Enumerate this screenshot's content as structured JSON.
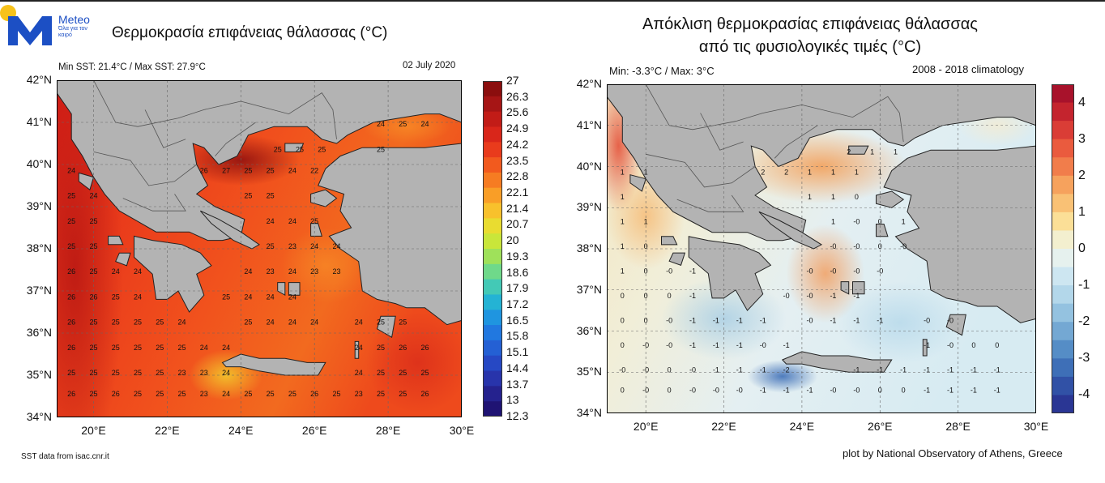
{
  "header": {
    "brand": "Meteo",
    "tagline": "Όλα για τον καιρό",
    "title_left": "Θερμοκρασία επιφάνειας θάλασσας (°C)",
    "title_right_line1": "Απόκλιση θερμοκρασίας επιφάνειας θάλασσας",
    "title_right_line2": "από τις φυσιολογικές τιμές (°C)"
  },
  "left_map": {
    "stats": "Min SST: 21.4°C / Max SST: 27.9°C",
    "date": "02 July 2020",
    "footer": "SST data from isac.cnr.it",
    "y_ticks": [
      "42°N",
      "41°N",
      "40°N",
      "39°N",
      "38°N",
      "37°N",
      "36°N",
      "35°N",
      "34°N"
    ],
    "x_ticks": [
      "20°E",
      "22°E",
      "24°E",
      "26°E",
      "28°E",
      "30°E"
    ],
    "colorbar_labels": [
      "27",
      "26.3",
      "25.6",
      "24.9",
      "24.2",
      "23.5",
      "22.8",
      "22.1",
      "21.4",
      "20.7",
      "20",
      "19.3",
      "18.6",
      "17.9",
      "17.2",
      "16.5",
      "15.8",
      "15.1",
      "14.4",
      "13.7",
      "13",
      "12.3"
    ],
    "colorbar_colors": [
      "#8b0e0e",
      "#a61515",
      "#c21c17",
      "#d9261a",
      "#e93b1c",
      "#f25a1e",
      "#f67c22",
      "#f99e27",
      "#f8c12c",
      "#e9dc30",
      "#c9e63a",
      "#9fe15a",
      "#6fd98a",
      "#43c9b6",
      "#24b3d4",
      "#1f95e0",
      "#2178e0",
      "#2460d4",
      "#2648c4",
      "#2834ab",
      "#25228e",
      "#1f1373"
    ],
    "value_rows": [
      {
        "lat": 39.8,
        "values": [
          {
            "lon": 19.4,
            "v": "24"
          },
          {
            "lon": 23.0,
            "v": "26"
          },
          {
            "lon": 23.6,
            "v": "27"
          },
          {
            "lon": 24.2,
            "v": "25"
          },
          {
            "lon": 24.8,
            "v": "25"
          },
          {
            "lon": 25.4,
            "v": "24"
          },
          {
            "lon": 26.0,
            "v": "22"
          }
        ]
      },
      {
        "lat": 39.2,
        "values": [
          {
            "lon": 19.4,
            "v": "25"
          },
          {
            "lon": 20.0,
            "v": "24"
          },
          {
            "lon": 24.2,
            "v": "25"
          },
          {
            "lon": 24.8,
            "v": "25"
          }
        ]
      },
      {
        "lat": 38.6,
        "values": [
          {
            "lon": 19.4,
            "v": "25"
          },
          {
            "lon": 20.0,
            "v": "25"
          },
          {
            "lon": 24.8,
            "v": "24"
          },
          {
            "lon": 25.4,
            "v": "24"
          },
          {
            "lon": 26.0,
            "v": "25"
          }
        ]
      },
      {
        "lat": 38.0,
        "values": [
          {
            "lon": 19.4,
            "v": "25"
          },
          {
            "lon": 20.0,
            "v": "25"
          },
          {
            "lon": 24.8,
            "v": "25"
          },
          {
            "lon": 25.4,
            "v": "23"
          },
          {
            "lon": 26.0,
            "v": "24"
          },
          {
            "lon": 26.6,
            "v": "24"
          }
        ]
      },
      {
        "lat": 37.4,
        "values": [
          {
            "lon": 19.4,
            "v": "26"
          },
          {
            "lon": 20.0,
            "v": "25"
          },
          {
            "lon": 20.6,
            "v": "24"
          },
          {
            "lon": 21.2,
            "v": "24"
          },
          {
            "lon": 24.2,
            "v": "24"
          },
          {
            "lon": 24.8,
            "v": "23"
          },
          {
            "lon": 25.4,
            "v": "24"
          },
          {
            "lon": 26.0,
            "v": "23"
          },
          {
            "lon": 26.6,
            "v": "23"
          }
        ]
      },
      {
        "lat": 36.8,
        "values": [
          {
            "lon": 19.4,
            "v": "26"
          },
          {
            "lon": 20.0,
            "v": "26"
          },
          {
            "lon": 20.6,
            "v": "25"
          },
          {
            "lon": 21.2,
            "v": "24"
          },
          {
            "lon": 23.6,
            "v": "25"
          },
          {
            "lon": 24.2,
            "v": "24"
          },
          {
            "lon": 24.8,
            "v": "24"
          },
          {
            "lon": 25.4,
            "v": "24"
          }
        ]
      },
      {
        "lat": 36.2,
        "values": [
          {
            "lon": 19.4,
            "v": "26"
          },
          {
            "lon": 20.0,
            "v": "25"
          },
          {
            "lon": 20.6,
            "v": "25"
          },
          {
            "lon": 21.2,
            "v": "25"
          },
          {
            "lon": 21.8,
            "v": "25"
          },
          {
            "lon": 22.4,
            "v": "24"
          },
          {
            "lon": 24.2,
            "v": "25"
          },
          {
            "lon": 24.8,
            "v": "24"
          },
          {
            "lon": 25.4,
            "v": "24"
          },
          {
            "lon": 26.0,
            "v": "24"
          },
          {
            "lon": 27.2,
            "v": "24"
          },
          {
            "lon": 27.8,
            "v": "25"
          },
          {
            "lon": 28.4,
            "v": "25"
          }
        ]
      },
      {
        "lat": 35.6,
        "values": [
          {
            "lon": 19.4,
            "v": "26"
          },
          {
            "lon": 20.0,
            "v": "25"
          },
          {
            "lon": 20.6,
            "v": "25"
          },
          {
            "lon": 21.2,
            "v": "25"
          },
          {
            "lon": 21.8,
            "v": "25"
          },
          {
            "lon": 22.4,
            "v": "25"
          },
          {
            "lon": 23.0,
            "v": "24"
          },
          {
            "lon": 23.6,
            "v": "24"
          },
          {
            "lon": 27.2,
            "v": "24"
          },
          {
            "lon": 27.8,
            "v": "25"
          },
          {
            "lon": 28.4,
            "v": "26"
          },
          {
            "lon": 29.0,
            "v": "26"
          }
        ]
      },
      {
        "lat": 35.0,
        "values": [
          {
            "lon": 19.4,
            "v": "25"
          },
          {
            "lon": 20.0,
            "v": "25"
          },
          {
            "lon": 20.6,
            "v": "25"
          },
          {
            "lon": 21.2,
            "v": "25"
          },
          {
            "lon": 21.8,
            "v": "25"
          },
          {
            "lon": 22.4,
            "v": "23"
          },
          {
            "lon": 23.0,
            "v": "23"
          },
          {
            "lon": 23.6,
            "v": "24"
          },
          {
            "lon": 27.2,
            "v": "24"
          },
          {
            "lon": 27.8,
            "v": "25"
          },
          {
            "lon": 28.4,
            "v": "25"
          },
          {
            "lon": 29.0,
            "v": "25"
          }
        ]
      },
      {
        "lat": 34.5,
        "values": [
          {
            "lon": 19.4,
            "v": "26"
          },
          {
            "lon": 20.0,
            "v": "25"
          },
          {
            "lon": 20.6,
            "v": "26"
          },
          {
            "lon": 21.2,
            "v": "25"
          },
          {
            "lon": 21.8,
            "v": "25"
          },
          {
            "lon": 22.4,
            "v": "25"
          },
          {
            "lon": 23.0,
            "v": "23"
          },
          {
            "lon": 23.6,
            "v": "24"
          },
          {
            "lon": 24.2,
            "v": "25"
          },
          {
            "lon": 24.8,
            "v": "25"
          },
          {
            "lon": 25.4,
            "v": "25"
          },
          {
            "lon": 26.0,
            "v": "26"
          },
          {
            "lon": 26.6,
            "v": "25"
          },
          {
            "lon": 27.2,
            "v": "23"
          },
          {
            "lon": 27.8,
            "v": "25"
          },
          {
            "lon": 28.4,
            "v": "25"
          },
          {
            "lon": 29.0,
            "v": "26"
          }
        ]
      },
      {
        "lat": 40.9,
        "values": [
          {
            "lon": 27.8,
            "v": "24"
          },
          {
            "lon": 28.4,
            "v": "25"
          },
          {
            "lon": 29.0,
            "v": "24"
          }
        ]
      },
      {
        "lat": 40.3,
        "values": [
          {
            "lon": 25.0,
            "v": "25"
          },
          {
            "lon": 25.6,
            "v": "25"
          },
          {
            "lon": 26.2,
            "v": "25"
          },
          {
            "lon": 27.8,
            "v": "25"
          }
        ]
      }
    ]
  },
  "right_map": {
    "stats": "Min: -3.3°C / Max: 3°C",
    "climatology": "2008 - 2018 climatology",
    "footer": "plot by National Observatory of Athens, Greece",
    "y_ticks": [
      "42°N",
      "41°N",
      "40°N",
      "39°N",
      "38°N",
      "37°N",
      "36°N",
      "35°N",
      "34°N"
    ],
    "x_ticks": [
      "20°E",
      "22°E",
      "24°E",
      "26°E",
      "28°E",
      "30°E"
    ],
    "colorbar_labels": [
      "4",
      "3",
      "2",
      "1",
      "0",
      "-1",
      "-2",
      "-3",
      "-4"
    ],
    "colorbar_colors": [
      "#a8122b",
      "#c4242e",
      "#da3d36",
      "#ea5b3e",
      "#f17d4b",
      "#f6a25d",
      "#f9c175",
      "#fbdf97",
      "#f3efcf",
      "#e6f1ee",
      "#cde6f1",
      "#b3d7ea",
      "#94c2e0",
      "#74a8d3",
      "#558dc6",
      "#3e6fb7",
      "#3151a6",
      "#2a3694"
    ],
    "value_rows": [
      {
        "lat": 40.3,
        "values": [
          {
            "lon": 25.2,
            "v": "2"
          },
          {
            "lon": 25.8,
            "v": "1"
          },
          {
            "lon": 26.4,
            "v": "1"
          }
        ]
      },
      {
        "lat": 39.8,
        "values": [
          {
            "lon": 19.4,
            "v": "1"
          },
          {
            "lon": 20.0,
            "v": "1"
          },
          {
            "lon": 23.0,
            "v": "2"
          },
          {
            "lon": 23.6,
            "v": "2"
          },
          {
            "lon": 24.2,
            "v": "1"
          },
          {
            "lon": 24.8,
            "v": "1"
          },
          {
            "lon": 25.4,
            "v": "1"
          },
          {
            "lon": 26.0,
            "v": "1"
          }
        ]
      },
      {
        "lat": 39.2,
        "values": [
          {
            "lon": 19.4,
            "v": "1"
          },
          {
            "lon": 24.2,
            "v": "1"
          },
          {
            "lon": 24.8,
            "v": "1"
          },
          {
            "lon": 25.4,
            "v": "0"
          }
        ]
      },
      {
        "lat": 38.6,
        "values": [
          {
            "lon": 19.4,
            "v": "1"
          },
          {
            "lon": 20.0,
            "v": "1"
          },
          {
            "lon": 24.8,
            "v": "1"
          },
          {
            "lon": 25.4,
            "v": "-0"
          },
          {
            "lon": 26.0,
            "v": "0"
          },
          {
            "lon": 26.6,
            "v": "1"
          }
        ]
      },
      {
        "lat": 38.0,
        "values": [
          {
            "lon": 19.4,
            "v": "1"
          },
          {
            "lon": 20.0,
            "v": "0"
          },
          {
            "lon": 24.8,
            "v": "-0"
          },
          {
            "lon": 25.4,
            "v": "-0"
          },
          {
            "lon": 26.0,
            "v": "0"
          },
          {
            "lon": 26.6,
            "v": "-0"
          }
        ]
      },
      {
        "lat": 37.4,
        "values": [
          {
            "lon": 19.4,
            "v": "1"
          },
          {
            "lon": 20.0,
            "v": "0"
          },
          {
            "lon": 20.6,
            "v": "-0"
          },
          {
            "lon": 21.2,
            "v": "-1"
          },
          {
            "lon": 24.2,
            "v": "-0"
          },
          {
            "lon": 24.8,
            "v": "-0"
          },
          {
            "lon": 25.4,
            "v": "-0"
          },
          {
            "lon": 26.0,
            "v": "-0"
          }
        ]
      },
      {
        "lat": 36.8,
        "values": [
          {
            "lon": 19.4,
            "v": "0"
          },
          {
            "lon": 20.0,
            "v": "0"
          },
          {
            "lon": 20.6,
            "v": "0"
          },
          {
            "lon": 21.2,
            "v": "-1"
          },
          {
            "lon": 23.6,
            "v": "-0"
          },
          {
            "lon": 24.2,
            "v": "-0"
          },
          {
            "lon": 24.8,
            "v": "-1"
          },
          {
            "lon": 25.4,
            "v": "-1"
          }
        ]
      },
      {
        "lat": 36.2,
        "values": [
          {
            "lon": 19.4,
            "v": "0"
          },
          {
            "lon": 20.0,
            "v": "0"
          },
          {
            "lon": 20.6,
            "v": "-0"
          },
          {
            "lon": 21.2,
            "v": "-1"
          },
          {
            "lon": 21.8,
            "v": "-1"
          },
          {
            "lon": 22.4,
            "v": "-1"
          },
          {
            "lon": 23.0,
            "v": "-1"
          },
          {
            "lon": 24.2,
            "v": "-0"
          },
          {
            "lon": 24.8,
            "v": "-1"
          },
          {
            "lon": 25.4,
            "v": "-1"
          },
          {
            "lon": 26.0,
            "v": "-1"
          },
          {
            "lon": 27.2,
            "v": "-0"
          },
          {
            "lon": 27.8,
            "v": "-0"
          }
        ]
      },
      {
        "lat": 35.6,
        "values": [
          {
            "lon": 19.4,
            "v": "0"
          },
          {
            "lon": 20.0,
            "v": "-0"
          },
          {
            "lon": 20.6,
            "v": "-0"
          },
          {
            "lon": 21.2,
            "v": "-1"
          },
          {
            "lon": 21.8,
            "v": "-1"
          },
          {
            "lon": 22.4,
            "v": "-1"
          },
          {
            "lon": 23.0,
            "v": "-0"
          },
          {
            "lon": 23.6,
            "v": "-1"
          },
          {
            "lon": 27.2,
            "v": "-1"
          },
          {
            "lon": 27.8,
            "v": "-0"
          },
          {
            "lon": 28.4,
            "v": "0"
          },
          {
            "lon": 29.0,
            "v": "0"
          }
        ]
      },
      {
        "lat": 35.0,
        "values": [
          {
            "lon": 19.4,
            "v": "-0"
          },
          {
            "lon": 20.0,
            "v": "-0"
          },
          {
            "lon": 20.6,
            "v": "0"
          },
          {
            "lon": 21.2,
            "v": "-0"
          },
          {
            "lon": 21.8,
            "v": "-1"
          },
          {
            "lon": 22.4,
            "v": "-1"
          },
          {
            "lon": 23.0,
            "v": "-1"
          },
          {
            "lon": 23.6,
            "v": "-2"
          },
          {
            "lon": 25.4,
            "v": "-1"
          },
          {
            "lon": 26.0,
            "v": "-1"
          },
          {
            "lon": 26.6,
            "v": "-1"
          },
          {
            "lon": 27.2,
            "v": "-1"
          },
          {
            "lon": 27.8,
            "v": "-1"
          },
          {
            "lon": 28.4,
            "v": "-1"
          },
          {
            "lon": 29.0,
            "v": "-1"
          }
        ]
      },
      {
        "lat": 34.5,
        "values": [
          {
            "lon": 19.4,
            "v": "0"
          },
          {
            "lon": 20.0,
            "v": "-0"
          },
          {
            "lon": 20.6,
            "v": "0"
          },
          {
            "lon": 21.2,
            "v": "-0"
          },
          {
            "lon": 21.8,
            "v": "-0"
          },
          {
            "lon": 22.4,
            "v": "-0"
          },
          {
            "lon": 23.0,
            "v": "-1"
          },
          {
            "lon": 23.6,
            "v": "-1"
          },
          {
            "lon": 24.2,
            "v": "-1"
          },
          {
            "lon": 24.8,
            "v": "-0"
          },
          {
            "lon": 25.4,
            "v": "-0"
          },
          {
            "lon": 26.0,
            "v": "0"
          },
          {
            "lon": 26.6,
            "v": "0"
          },
          {
            "lon": 27.2,
            "v": "-1"
          },
          {
            "lon": 27.8,
            "v": "-1"
          },
          {
            "lon": 28.4,
            "v": "-1"
          },
          {
            "lon": 29.0,
            "v": "-1"
          }
        ]
      }
    ]
  }
}
